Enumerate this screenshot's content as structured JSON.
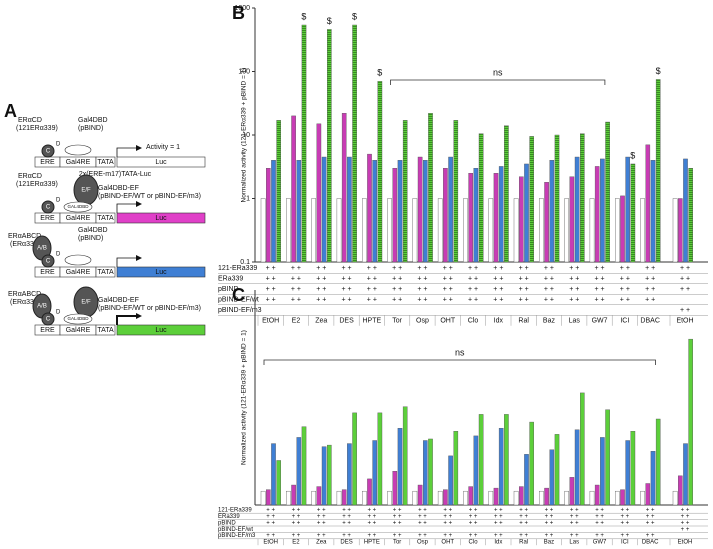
{
  "chart_data": [
    {
      "type": "bar",
      "panel": "B",
      "y_label": "Normalized activity (121-ERα339 + pBIND = 1)",
      "log": true,
      "ylim": [
        0.1,
        1000
      ],
      "yticks": [
        0.1,
        1,
        10,
        100,
        1000
      ],
      "categories": [
        "EtOH",
        "E2",
        "Zea",
        "DES",
        "HPTE",
        "Tor",
        "Osp",
        "OHT",
        "Clo",
        "Idx",
        "Ral",
        "Baz",
        "Las",
        "GW7",
        "ICI",
        "DBAC",
        "EtOH"
      ],
      "series": [
        {
          "color": "#ffffff",
          "values": [
            1,
            1,
            1,
            1,
            1,
            1,
            1,
            1,
            1,
            1,
            1,
            1,
            1,
            1,
            1,
            1,
            1
          ]
        },
        {
          "color": "#c83cb4",
          "values": [
            3,
            20,
            15,
            22,
            5,
            3,
            4.5,
            3,
            2.5,
            2.5,
            2.2,
            1.8,
            2.2,
            3.2,
            1.1,
            7,
            1
          ]
        },
        {
          "color": "#3f7fd4",
          "values": [
            4,
            4,
            4.5,
            4.5,
            4,
            4,
            4,
            4.5,
            3,
            3.2,
            3.5,
            4,
            4.5,
            4.2,
            4.5,
            4,
            4.2
          ]
        },
        {
          "color": "#5ccf3a",
          "pattern": "stripes",
          "values": [
            17,
            540,
            460,
            540,
            70,
            17,
            22,
            17,
            10.5,
            14,
            9.5,
            10,
            10.5,
            16,
            3.5,
            75,
            3
          ]
        }
      ],
      "markers": [
        null,
        "$",
        "$",
        "$",
        "$",
        null,
        null,
        null,
        null,
        null,
        null,
        null,
        null,
        null,
        "$",
        "$",
        null
      ],
      "bracket": "ns",
      "table": [
        {
          "label": "121-ERa339",
          "cells": [
            "+ +",
            "+ +",
            "+ +",
            "+ +",
            "+ +",
            "+ +",
            "+ +",
            "+ +",
            "+ +",
            "+ +",
            "+ +",
            "+ +",
            "+ +",
            "+ +",
            "+ +",
            "+ +",
            "+ +"
          ]
        },
        {
          "label": "ERa339",
          "cells": [
            "+ +",
            "+ +",
            "+ +",
            "+ +",
            "+ +",
            "+ +",
            "+ +",
            "+ +",
            "+ +",
            "+ +",
            "+ +",
            "+ +",
            "+ +",
            "+ +",
            "+ +",
            "+ +",
            "+ +"
          ]
        },
        {
          "label": "pBIND",
          "cells": [
            "+ +",
            "+ +",
            "+ +",
            "+ +",
            "+ +",
            "+ +",
            "+ +",
            "+ +",
            "+ +",
            "+ +",
            "+ +",
            "+ +",
            "+ +",
            "+ +",
            "+ +",
            "+ +",
            "+ +"
          ]
        },
        {
          "label": "pBIND-EF/wt",
          "cells": [
            "+ +",
            "+ +",
            "+ +",
            "+ +",
            "+ +",
            "+ +",
            "+ +",
            "+ +",
            "+ +",
            "+ +",
            "+ +",
            "+ +",
            "+ +",
            "+ +",
            "+ +",
            "+ +",
            null
          ]
        },
        {
          "label": "pBIND-EF/m3",
          "cells": [
            null,
            null,
            null,
            null,
            null,
            null,
            null,
            null,
            null,
            null,
            null,
            null,
            null,
            null,
            null,
            null,
            "+ +"
          ]
        }
      ]
    },
    {
      "type": "bar",
      "panel": "C",
      "y_label": "Normalized activity (121-ERα339 + pBIND = 1)",
      "log": false,
      "ylim": [
        0,
        14
      ],
      "categories": [
        "EtOH",
        "E2",
        "Zea",
        "DES",
        "HPTE",
        "Tor",
        "Osp",
        "OHT",
        "Clo",
        "Idx",
        "Ral",
        "Baz",
        "Las",
        "GW7",
        "ICI",
        "DBAC",
        "EtOH"
      ],
      "series": [
        {
          "color": "#ffffff",
          "values": [
            0.9,
            0.9,
            0.9,
            0.9,
            0.9,
            0.9,
            0.9,
            0.9,
            0.9,
            0.9,
            0.9,
            0.9,
            0.9,
            0.9,
            0.9,
            0.9,
            0.9
          ]
        },
        {
          "color": "#c83cb4",
          "values": [
            1.0,
            1.3,
            1.2,
            1.0,
            1.7,
            2.2,
            1.3,
            1.0,
            1.2,
            1.1,
            1.2,
            1.1,
            1.8,
            1.3,
            1.0,
            1.4,
            1.9
          ]
        },
        {
          "color": "#3f7fd4",
          "values": [
            4.0,
            4.4,
            3.8,
            4.0,
            4.2,
            5.0,
            4.2,
            3.2,
            4.5,
            5.0,
            3.3,
            3.6,
            4.9,
            4.4,
            4.2,
            3.5,
            4.0
          ]
        },
        {
          "color": "#5ccf3a",
          "values": [
            2.9,
            5.1,
            3.9,
            6.0,
            6.0,
            6.4,
            4.3,
            4.8,
            5.9,
            5.9,
            5.4,
            4.6,
            7.3,
            6.2,
            4.8,
            5.6,
            10.8
          ]
        }
      ],
      "bracket": "ns",
      "table": [
        {
          "label": "121-ERa339",
          "cells": [
            "+ +",
            "+ +",
            "+ +",
            "+ +",
            "+ +",
            "+ +",
            "+ +",
            "+ +",
            "+ +",
            "+ +",
            "+ +",
            "+ +",
            "+ +",
            "+ +",
            "+ +",
            "+ +",
            "+ +"
          ]
        },
        {
          "label": "ERa339",
          "cells": [
            "+ +",
            "+ +",
            "+ +",
            "+ +",
            "+ +",
            "+ +",
            "+ +",
            "+ +",
            "+ +",
            "+ +",
            "+ +",
            "+ +",
            "+ +",
            "+ +",
            "+ +",
            "+ +",
            "+ +"
          ]
        },
        {
          "label": "pBIND",
          "cells": [
            "+ +",
            "+ +",
            "+ +",
            "+ +",
            "+ +",
            "+ +",
            "+ +",
            "+ +",
            "+ +",
            "+ +",
            "+ +",
            "+ +",
            "+ +",
            "+ +",
            "+ +",
            "+ +",
            "+ +"
          ]
        },
        {
          "label": "pBIND-EF/wt",
          "cells": [
            null,
            null,
            null,
            null,
            null,
            null,
            null,
            null,
            null,
            null,
            null,
            null,
            null,
            null,
            null,
            null,
            "+ +"
          ]
        },
        {
          "label": "pBIND-EF/m3",
          "cells": [
            "+ +",
            "+ +",
            "+ +",
            "+ +",
            "+ +",
            "+ +",
            "+ +",
            "+ +",
            "+ +",
            "+ +",
            "+ +",
            "+ +",
            "+ +",
            "+ +",
            "+ +",
            "+ +",
            null
          ]
        }
      ]
    }
  ],
  "diagram": {
    "panel": "A",
    "elements": {
      "ere": "ERE",
      "gal4re": "Gal4RE",
      "tata": "TATA",
      "luc": "Luc"
    },
    "constructs": [
      {
        "name": "ERαCD",
        "detail": "(121ERα339)",
        "fusion": "Gal4DBD",
        "fusion_detail": "(pBIND)",
        "domains": [
          "C",
          "D"
        ],
        "activity": "Activity = 1",
        "reporter": "2x(ERE-m17)TATA-Luc",
        "luc_color": "#ffffff"
      },
      {
        "name": "ERαCD",
        "detail": "(121ERα339)",
        "fusion": "Gal4DBD-EF",
        "fusion_detail": "(pBIND-EF/WT or pBIND-EF/m3)",
        "domains": [
          "C",
          "D"
        ],
        "ef": "E/F",
        "dbd": "GAL4DBD",
        "luc_color": "#e040c8"
      },
      {
        "name": "ERαABCD",
        "detail": "(ERα339)",
        "fusion": "Gal4DBD",
        "fusion_detail": "(pBIND)",
        "domains": [
          "C",
          "D",
          "A/B"
        ],
        "luc_color": "#3f7fd4"
      },
      {
        "name": "ERαABCD",
        "detail": "(ERα339)",
        "fusion": "Gal4DBD-EF",
        "fusion_detail": "(pBIND-EF/WT or pBIND-EF/m3)",
        "domains": [
          "C",
          "D",
          "A/B"
        ],
        "ef": "E/F",
        "dbd": "GAL4DBD",
        "luc_color": "#5ccf3a"
      }
    ]
  }
}
